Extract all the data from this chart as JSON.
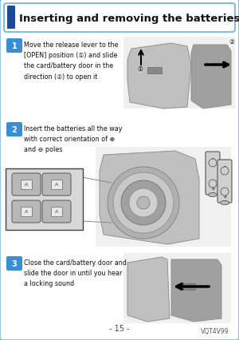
{
  "title": "Inserting and removing the batteries",
  "bg_color": "#ffffff",
  "title_bg": "#1a4a9a",
  "step_badge_color": "#3a8fd4",
  "step_text_color": "#ffffff",
  "body_text_color": "#111111",
  "border_color": "#6ab0e0",
  "step1_text": "Move the release lever to the\n[OPEN] position (①) and slide\nthe card/battery door in the\ndirection (②) to open it",
  "step2_text": "Insert the batteries all the way\nwith correct orientation of ⊕\nand ⊖ poles",
  "step3_text": "Close the card/battery door and\nslide the door in until you hear\na locking sound",
  "footer_text": "- 15 -",
  "footer_right": "VQT4V99",
  "cam_gray": "#c0c0c0",
  "cam_dark": "#909090",
  "cam_light": "#d8d8d8",
  "cam_shadow": "#a0a0a0"
}
